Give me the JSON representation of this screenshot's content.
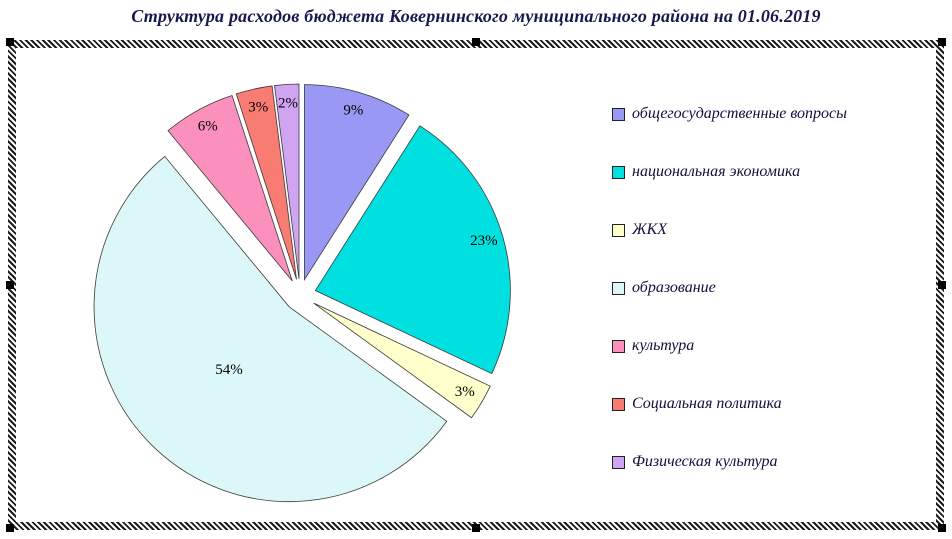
{
  "title": "Структура расходов бюджета Ковернинского муниципального района на 01.06.2019",
  "chart_data": {
    "type": "pie",
    "title": "Структура расходов бюджета Ковернинского муниципального района на 01.06.2019",
    "exploded": true,
    "start_angle_deg": 0,
    "direction": "clockwise",
    "legend_position": "right",
    "label_color": "#000000",
    "outline_color": "#3a3a3a",
    "slices": [
      {
        "label": "общегосударственные вопросы",
        "value": 9,
        "percent_label": "9%",
        "color": "#9999F5"
      },
      {
        "label": "национальная экономика",
        "value": 23,
        "percent_label": "23%",
        "color": "#00E0E0"
      },
      {
        "label": "ЖКХ",
        "value": 3,
        "percent_label": "3%",
        "color": "#FFFFCC"
      },
      {
        "label": "образование",
        "value": 54,
        "percent_label": "54%",
        "color": "#DCF7F7"
      },
      {
        "label": "культура",
        "value": 6,
        "percent_label": "6%",
        "color": "#FC90BC"
      },
      {
        "label": "Социальная политика",
        "value": 3,
        "percent_label": "3%",
        "color": "#F97C72"
      },
      {
        "label": "Физическая культура",
        "value": 2,
        "percent_label": "2%",
        "color": "#CFA5F2"
      }
    ]
  }
}
